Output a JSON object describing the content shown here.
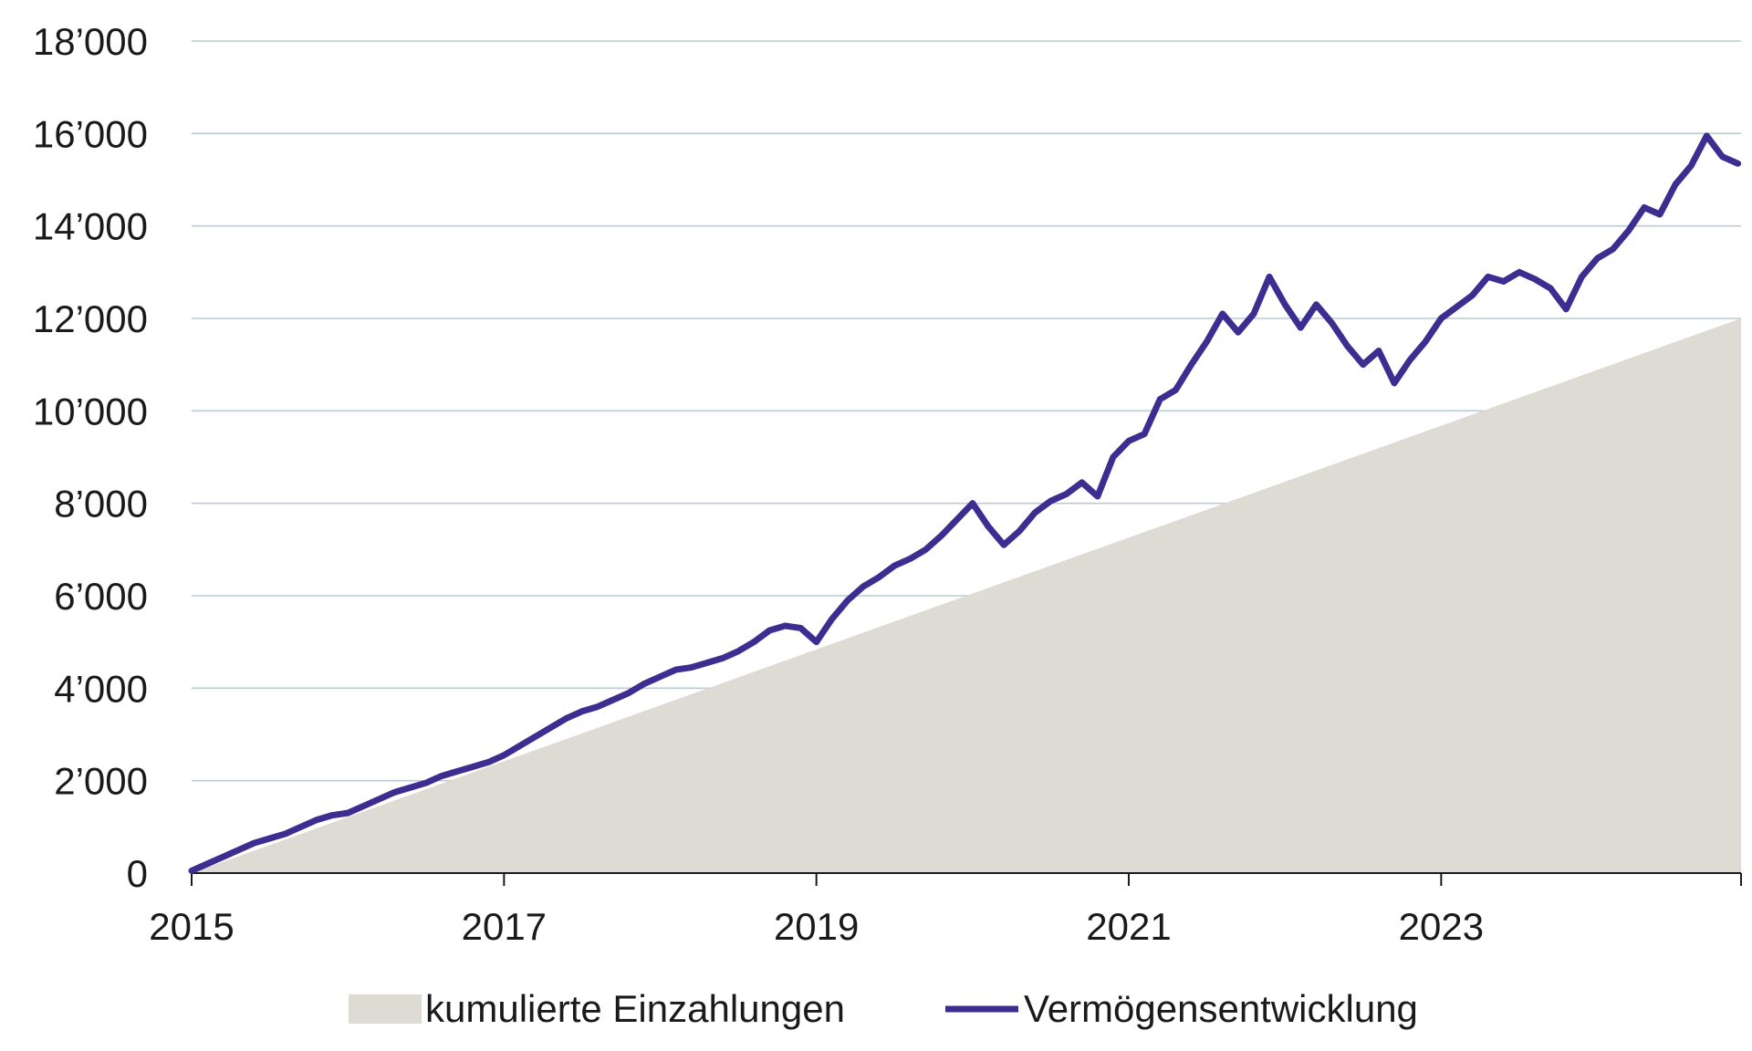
{
  "chart_data": {
    "type": "area",
    "xlim": [
      2015,
      2024.92
    ],
    "ylim": [
      0,
      18000
    ],
    "grid": true,
    "legend_position": "bottom",
    "x_ticks": [
      {
        "value": 2015,
        "label": "2015"
      },
      {
        "value": 2017,
        "label": "2017"
      },
      {
        "value": 2019,
        "label": "2019"
      },
      {
        "value": 2021,
        "label": "2021"
      },
      {
        "value": 2023,
        "label": "2023"
      }
    ],
    "y_ticks": [
      {
        "value": 0,
        "label": "0"
      },
      {
        "value": 2000,
        "label": "2’000"
      },
      {
        "value": 4000,
        "label": "4’000"
      },
      {
        "value": 6000,
        "label": "6’000"
      },
      {
        "value": 8000,
        "label": "8’000"
      },
      {
        "value": 10000,
        "label": "10’000"
      },
      {
        "value": 12000,
        "label": "12’000"
      },
      {
        "value": 14000,
        "label": "14’000"
      },
      {
        "value": 16000,
        "label": "16’000"
      },
      {
        "value": 18000,
        "label": "18’000"
      }
    ],
    "series": [
      {
        "name": "kumulierte Einzahlungen",
        "kind": "area",
        "color": "#dddbd3",
        "x": [
          2015,
          2024.92
        ],
        "y": [
          0,
          12000
        ]
      },
      {
        "name": "Vermögensentwicklung",
        "kind": "line",
        "color": "#3d2d91",
        "x": [
          2015.0,
          2015.1,
          2015.2,
          2015.3,
          2015.4,
          2015.5,
          2015.6,
          2015.7,
          2015.8,
          2015.9,
          2016.0,
          2016.1,
          2016.2,
          2016.3,
          2016.4,
          2016.5,
          2016.6,
          2016.7,
          2016.8,
          2016.9,
          2017.0,
          2017.1,
          2017.2,
          2017.3,
          2017.4,
          2017.5,
          2017.6,
          2017.7,
          2017.8,
          2017.9,
          2018.0,
          2018.1,
          2018.2,
          2018.3,
          2018.4,
          2018.5,
          2018.6,
          2018.7,
          2018.8,
          2018.9,
          2019.0,
          2019.1,
          2019.2,
          2019.3,
          2019.4,
          2019.5,
          2019.6,
          2019.7,
          2019.8,
          2019.9,
          2020.0,
          2020.1,
          2020.2,
          2020.3,
          2020.4,
          2020.5,
          2020.6,
          2020.7,
          2020.8,
          2020.9,
          2021.0,
          2021.1,
          2021.2,
          2021.3,
          2021.4,
          2021.5,
          2021.6,
          2021.7,
          2021.8,
          2021.9,
          2022.0,
          2022.1,
          2022.2,
          2022.3,
          2022.4,
          2022.5,
          2022.6,
          2022.7,
          2022.8,
          2022.9,
          2023.0,
          2023.1,
          2023.2,
          2023.3,
          2023.4,
          2023.5,
          2023.6,
          2023.7,
          2023.8,
          2023.9,
          2024.0,
          2024.1,
          2024.2,
          2024.3,
          2024.4,
          2024.5,
          2024.6,
          2024.7,
          2024.8,
          2024.9
        ],
        "y": [
          50,
          200,
          350,
          500,
          650,
          750,
          850,
          1000,
          1150,
          1250,
          1300,
          1450,
          1600,
          1750,
          1850,
          1950,
          2100,
          2200,
          2300,
          2400,
          2550,
          2750,
          2950,
          3150,
          3350,
          3500,
          3600,
          3750,
          3900,
          4100,
          4250,
          4400,
          4450,
          4550,
          4650,
          4800,
          5000,
          5250,
          5350,
          5300,
          5000,
          5500,
          5900,
          6200,
          6400,
          6650,
          6800,
          7000,
          7300,
          7650,
          8000,
          7500,
          7100,
          7400,
          7800,
          8050,
          8200,
          8450,
          8150,
          9000,
          9350,
          9500,
          10250,
          10450,
          11000,
          11500,
          12100,
          11700,
          12100,
          12900,
          12300,
          11800,
          12300,
          11900,
          11400,
          11000,
          11300,
          10600,
          11100,
          11500,
          12000,
          12250,
          12500,
          12900,
          12800,
          13000,
          12850,
          12650,
          12200,
          12900,
          13300,
          13500,
          13900,
          14400,
          14250,
          14900,
          15300,
          15950,
          15500,
          15350
        ]
      }
    ]
  }
}
